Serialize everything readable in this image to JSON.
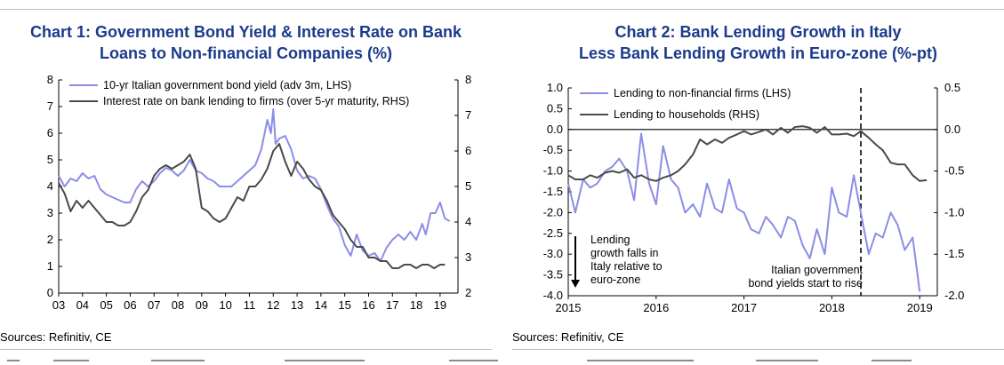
{
  "charts": [
    {
      "title_line1": "Chart 1: Government Bond Yield & Interest Rate on Bank",
      "title_line2": "Loans to Non-financial Companies (%)",
      "source": "Sources: Refinitiv, CE"
    },
    {
      "title_line1": "Chart 2: Bank Lending Growth in Italy",
      "title_line2": "Less Bank Lending Growth in Euro-zone (%-pt)",
      "source": "Sources: Refinitiv, CE"
    }
  ],
  "colors": {
    "title": "#1b3a8c",
    "lhs_series": "#8b8de6",
    "rhs_series": "#4a4a4a"
  },
  "chart_data": [
    {
      "type": "line",
      "title": "Chart 1: Government Bond Yield & Interest Rate on Bank Loans to Non-financial Companies (%)",
      "xlabel": "",
      "xlim": [
        2003,
        2019.75
      ],
      "x_tick_values": [
        2003,
        2004,
        2005,
        2006,
        2007,
        2008,
        2009,
        2010,
        2011,
        2012,
        2013,
        2014,
        2015,
        2016,
        2017,
        2018,
        2019
      ],
      "x_tick_labels": [
        "03",
        "04",
        "05",
        "06",
        "07",
        "08",
        "09",
        "10",
        "11",
        "12",
        "13",
        "14",
        "15",
        "16",
        "17",
        "18",
        "19"
      ],
      "y_left": {
        "lim": [
          0,
          8
        ],
        "ticks": [
          "0",
          "1",
          "2",
          "3",
          "4",
          "5",
          "6",
          "7",
          "8"
        ]
      },
      "y_right": {
        "lim": [
          2,
          8
        ],
        "ticks": [
          "2",
          "3",
          "4",
          "5",
          "6",
          "7",
          "8"
        ]
      },
      "legend_position": "top-left",
      "series": [
        {
          "name": "10-yr Italian government bond yield (adv 3m, LHS)",
          "axis": "left",
          "x": [
            2003.0,
            2003.25,
            2003.5,
            2003.75,
            2004.0,
            2004.25,
            2004.5,
            2004.75,
            2005.0,
            2005.25,
            2005.5,
            2005.75,
            2006.0,
            2006.25,
            2006.5,
            2006.75,
            2007.0,
            2007.25,
            2007.5,
            2007.75,
            2008.0,
            2008.25,
            2008.5,
            2008.75,
            2009.0,
            2009.25,
            2009.5,
            2009.75,
            2010.0,
            2010.25,
            2010.5,
            2010.75,
            2011.0,
            2011.25,
            2011.5,
            2011.75,
            2011.9,
            2012.0,
            2012.1,
            2012.25,
            2012.5,
            2012.75,
            2013.0,
            2013.25,
            2013.5,
            2013.75,
            2014.0,
            2014.25,
            2014.5,
            2014.75,
            2015.0,
            2015.25,
            2015.5,
            2015.75,
            2016.0,
            2016.25,
            2016.5,
            2016.75,
            2017.0,
            2017.25,
            2017.5,
            2017.75,
            2018.0,
            2018.25,
            2018.4,
            2018.6,
            2018.8,
            2019.0,
            2019.2,
            2019.4
          ],
          "values": [
            4.4,
            4.0,
            4.3,
            4.2,
            4.5,
            4.3,
            4.4,
            3.9,
            3.7,
            3.6,
            3.5,
            3.4,
            3.4,
            3.9,
            4.2,
            4.0,
            4.2,
            4.5,
            4.7,
            4.6,
            4.4,
            4.6,
            5.0,
            4.6,
            4.5,
            4.3,
            4.2,
            4.0,
            4.0,
            4.0,
            4.2,
            4.4,
            4.6,
            4.8,
            5.4,
            6.5,
            6.0,
            6.9,
            5.6,
            5.8,
            5.9,
            5.4,
            4.6,
            4.3,
            4.4,
            4.3,
            3.9,
            3.3,
            2.8,
            2.5,
            1.8,
            1.4,
            2.2,
            1.6,
            1.4,
            1.5,
            1.2,
            1.7,
            2.0,
            2.2,
            2.0,
            2.3,
            2.0,
            2.6,
            2.2,
            3.0,
            3.0,
            3.4,
            2.8,
            2.7
          ]
        },
        {
          "name": "Interest rate on bank lending to firms (over 5-yr maturity, RHS)",
          "axis": "right",
          "x": [
            2003.0,
            2003.25,
            2003.5,
            2003.75,
            2004.0,
            2004.25,
            2004.5,
            2004.75,
            2005.0,
            2005.25,
            2005.5,
            2005.75,
            2006.0,
            2006.25,
            2006.5,
            2006.75,
            2007.0,
            2007.25,
            2007.5,
            2007.75,
            2008.0,
            2008.25,
            2008.5,
            2008.75,
            2009.0,
            2009.25,
            2009.5,
            2009.75,
            2010.0,
            2010.25,
            2010.5,
            2010.75,
            2011.0,
            2011.25,
            2011.5,
            2011.75,
            2012.0,
            2012.25,
            2012.5,
            2012.75,
            2013.0,
            2013.25,
            2013.5,
            2013.75,
            2014.0,
            2014.25,
            2014.5,
            2014.75,
            2015.0,
            2015.25,
            2015.5,
            2015.75,
            2016.0,
            2016.25,
            2016.5,
            2016.75,
            2017.0,
            2017.25,
            2017.5,
            2017.75,
            2018.0,
            2018.25,
            2018.5,
            2018.75,
            2019.0,
            2019.2
          ],
          "values": [
            5.1,
            4.8,
            4.3,
            4.6,
            4.4,
            4.6,
            4.4,
            4.2,
            4.0,
            4.0,
            3.9,
            3.9,
            4.0,
            4.3,
            4.7,
            4.9,
            5.3,
            5.5,
            5.6,
            5.5,
            5.6,
            5.7,
            5.9,
            5.5,
            4.4,
            4.3,
            4.1,
            4.0,
            4.1,
            4.4,
            4.7,
            4.6,
            5.0,
            5.0,
            5.2,
            5.5,
            6.0,
            6.2,
            5.7,
            5.3,
            5.7,
            5.5,
            5.2,
            5.0,
            4.9,
            4.6,
            4.2,
            4.0,
            3.8,
            3.5,
            3.3,
            3.3,
            3.0,
            3.0,
            2.9,
            2.9,
            2.7,
            2.7,
            2.8,
            2.8,
            2.7,
            2.8,
            2.8,
            2.7,
            2.8,
            2.8
          ]
        }
      ]
    },
    {
      "type": "line",
      "title": "Chart 2: Bank Lending Growth in Italy Less Bank Lending Growth in Euro-zone (%-pt)",
      "xlabel": "",
      "xlim": [
        2015,
        2019.2
      ],
      "x_tick_values": [
        2015,
        2016,
        2017,
        2018,
        2019
      ],
      "x_tick_labels": [
        "2015",
        "2016",
        "2017",
        "2018",
        "2019"
      ],
      "y_left": {
        "lim": [
          -4.0,
          1.0
        ],
        "ticks": [
          "1.0",
          "0.5",
          "0.0",
          "-0.5",
          "-1.0",
          "-1.5",
          "-2.0",
          "-2.5",
          "-3.0",
          "-3.5",
          "-4.0"
        ]
      },
      "y_right": {
        "lim": [
          -2.0,
          0.5
        ],
        "ticks": [
          "0.5",
          "0.0",
          "-0.5",
          "-1.0",
          "-1.5",
          "-2.0"
        ]
      },
      "legend_position": "top-left",
      "zero_line": 0,
      "vertical_marker_x": 2018.33,
      "annotations": [
        {
          "text_lines": [
            "Lending",
            "growth falls in",
            "Italy relative to",
            "euro-zone"
          ],
          "arrow": "down"
        },
        {
          "text_lines": [
            "Italian government",
            "bond yields start to rise"
          ]
        }
      ],
      "series": [
        {
          "name": "Lending to non-financial firms (LHS)",
          "axis": "left",
          "x": [
            2015.0,
            2015.08,
            2015.17,
            2015.25,
            2015.33,
            2015.42,
            2015.5,
            2015.58,
            2015.67,
            2015.75,
            2015.83,
            2015.92,
            2016.0,
            2016.08,
            2016.17,
            2016.25,
            2016.33,
            2016.42,
            2016.5,
            2016.58,
            2016.67,
            2016.75,
            2016.83,
            2016.92,
            2017.0,
            2017.08,
            2017.17,
            2017.25,
            2017.33,
            2017.42,
            2017.5,
            2017.58,
            2017.67,
            2017.75,
            2017.83,
            2017.92,
            2018.0,
            2018.08,
            2018.17,
            2018.25,
            2018.33,
            2018.42,
            2018.5,
            2018.58,
            2018.67,
            2018.75,
            2018.83,
            2018.92,
            2019.0
          ],
          "values": [
            -1.3,
            -2.0,
            -1.2,
            -1.4,
            -1.3,
            -1.0,
            -0.9,
            -0.7,
            -1.0,
            -1.7,
            -0.1,
            -1.3,
            -1.8,
            -0.4,
            -1.2,
            -1.4,
            -2.0,
            -1.8,
            -2.1,
            -1.3,
            -1.9,
            -2.0,
            -1.2,
            -1.9,
            -2.0,
            -2.4,
            -2.5,
            -2.1,
            -2.3,
            -2.6,
            -2.1,
            -2.2,
            -2.8,
            -3.1,
            -2.4,
            -3.0,
            -1.4,
            -2.0,
            -2.1,
            -1.1,
            -2.0,
            -3.0,
            -2.5,
            -2.6,
            -2.0,
            -2.3,
            -2.9,
            -2.6,
            -3.9
          ]
        },
        {
          "name": "Lending to households (RHS)",
          "axis": "right",
          "x": [
            2015.0,
            2015.08,
            2015.17,
            2015.25,
            2015.33,
            2015.42,
            2015.5,
            2015.58,
            2015.67,
            2015.75,
            2015.83,
            2015.92,
            2016.0,
            2016.08,
            2016.17,
            2016.25,
            2016.33,
            2016.42,
            2016.5,
            2016.58,
            2016.67,
            2016.75,
            2016.83,
            2016.92,
            2017.0,
            2017.08,
            2017.17,
            2017.25,
            2017.33,
            2017.42,
            2017.5,
            2017.58,
            2017.67,
            2017.75,
            2017.83,
            2017.92,
            2018.0,
            2018.08,
            2018.17,
            2018.25,
            2018.33,
            2018.42,
            2018.5,
            2018.58,
            2018.67,
            2018.75,
            2018.83,
            2018.92,
            2019.0,
            2019.08
          ],
          "values": [
            -0.55,
            -0.6,
            -0.6,
            -0.55,
            -0.58,
            -0.52,
            -0.5,
            -0.52,
            -0.48,
            -0.58,
            -0.55,
            -0.6,
            -0.62,
            -0.58,
            -0.55,
            -0.5,
            -0.42,
            -0.3,
            -0.12,
            -0.18,
            -0.12,
            -0.16,
            -0.1,
            -0.06,
            -0.02,
            -0.06,
            -0.03,
            0.0,
            -0.06,
            0.02,
            -0.04,
            0.03,
            0.04,
            0.02,
            -0.04,
            0.03,
            -0.06,
            -0.06,
            -0.05,
            -0.08,
            -0.02,
            -0.1,
            -0.18,
            -0.25,
            -0.4,
            -0.42,
            -0.42,
            -0.55,
            -0.62,
            -0.61
          ]
        }
      ]
    }
  ]
}
